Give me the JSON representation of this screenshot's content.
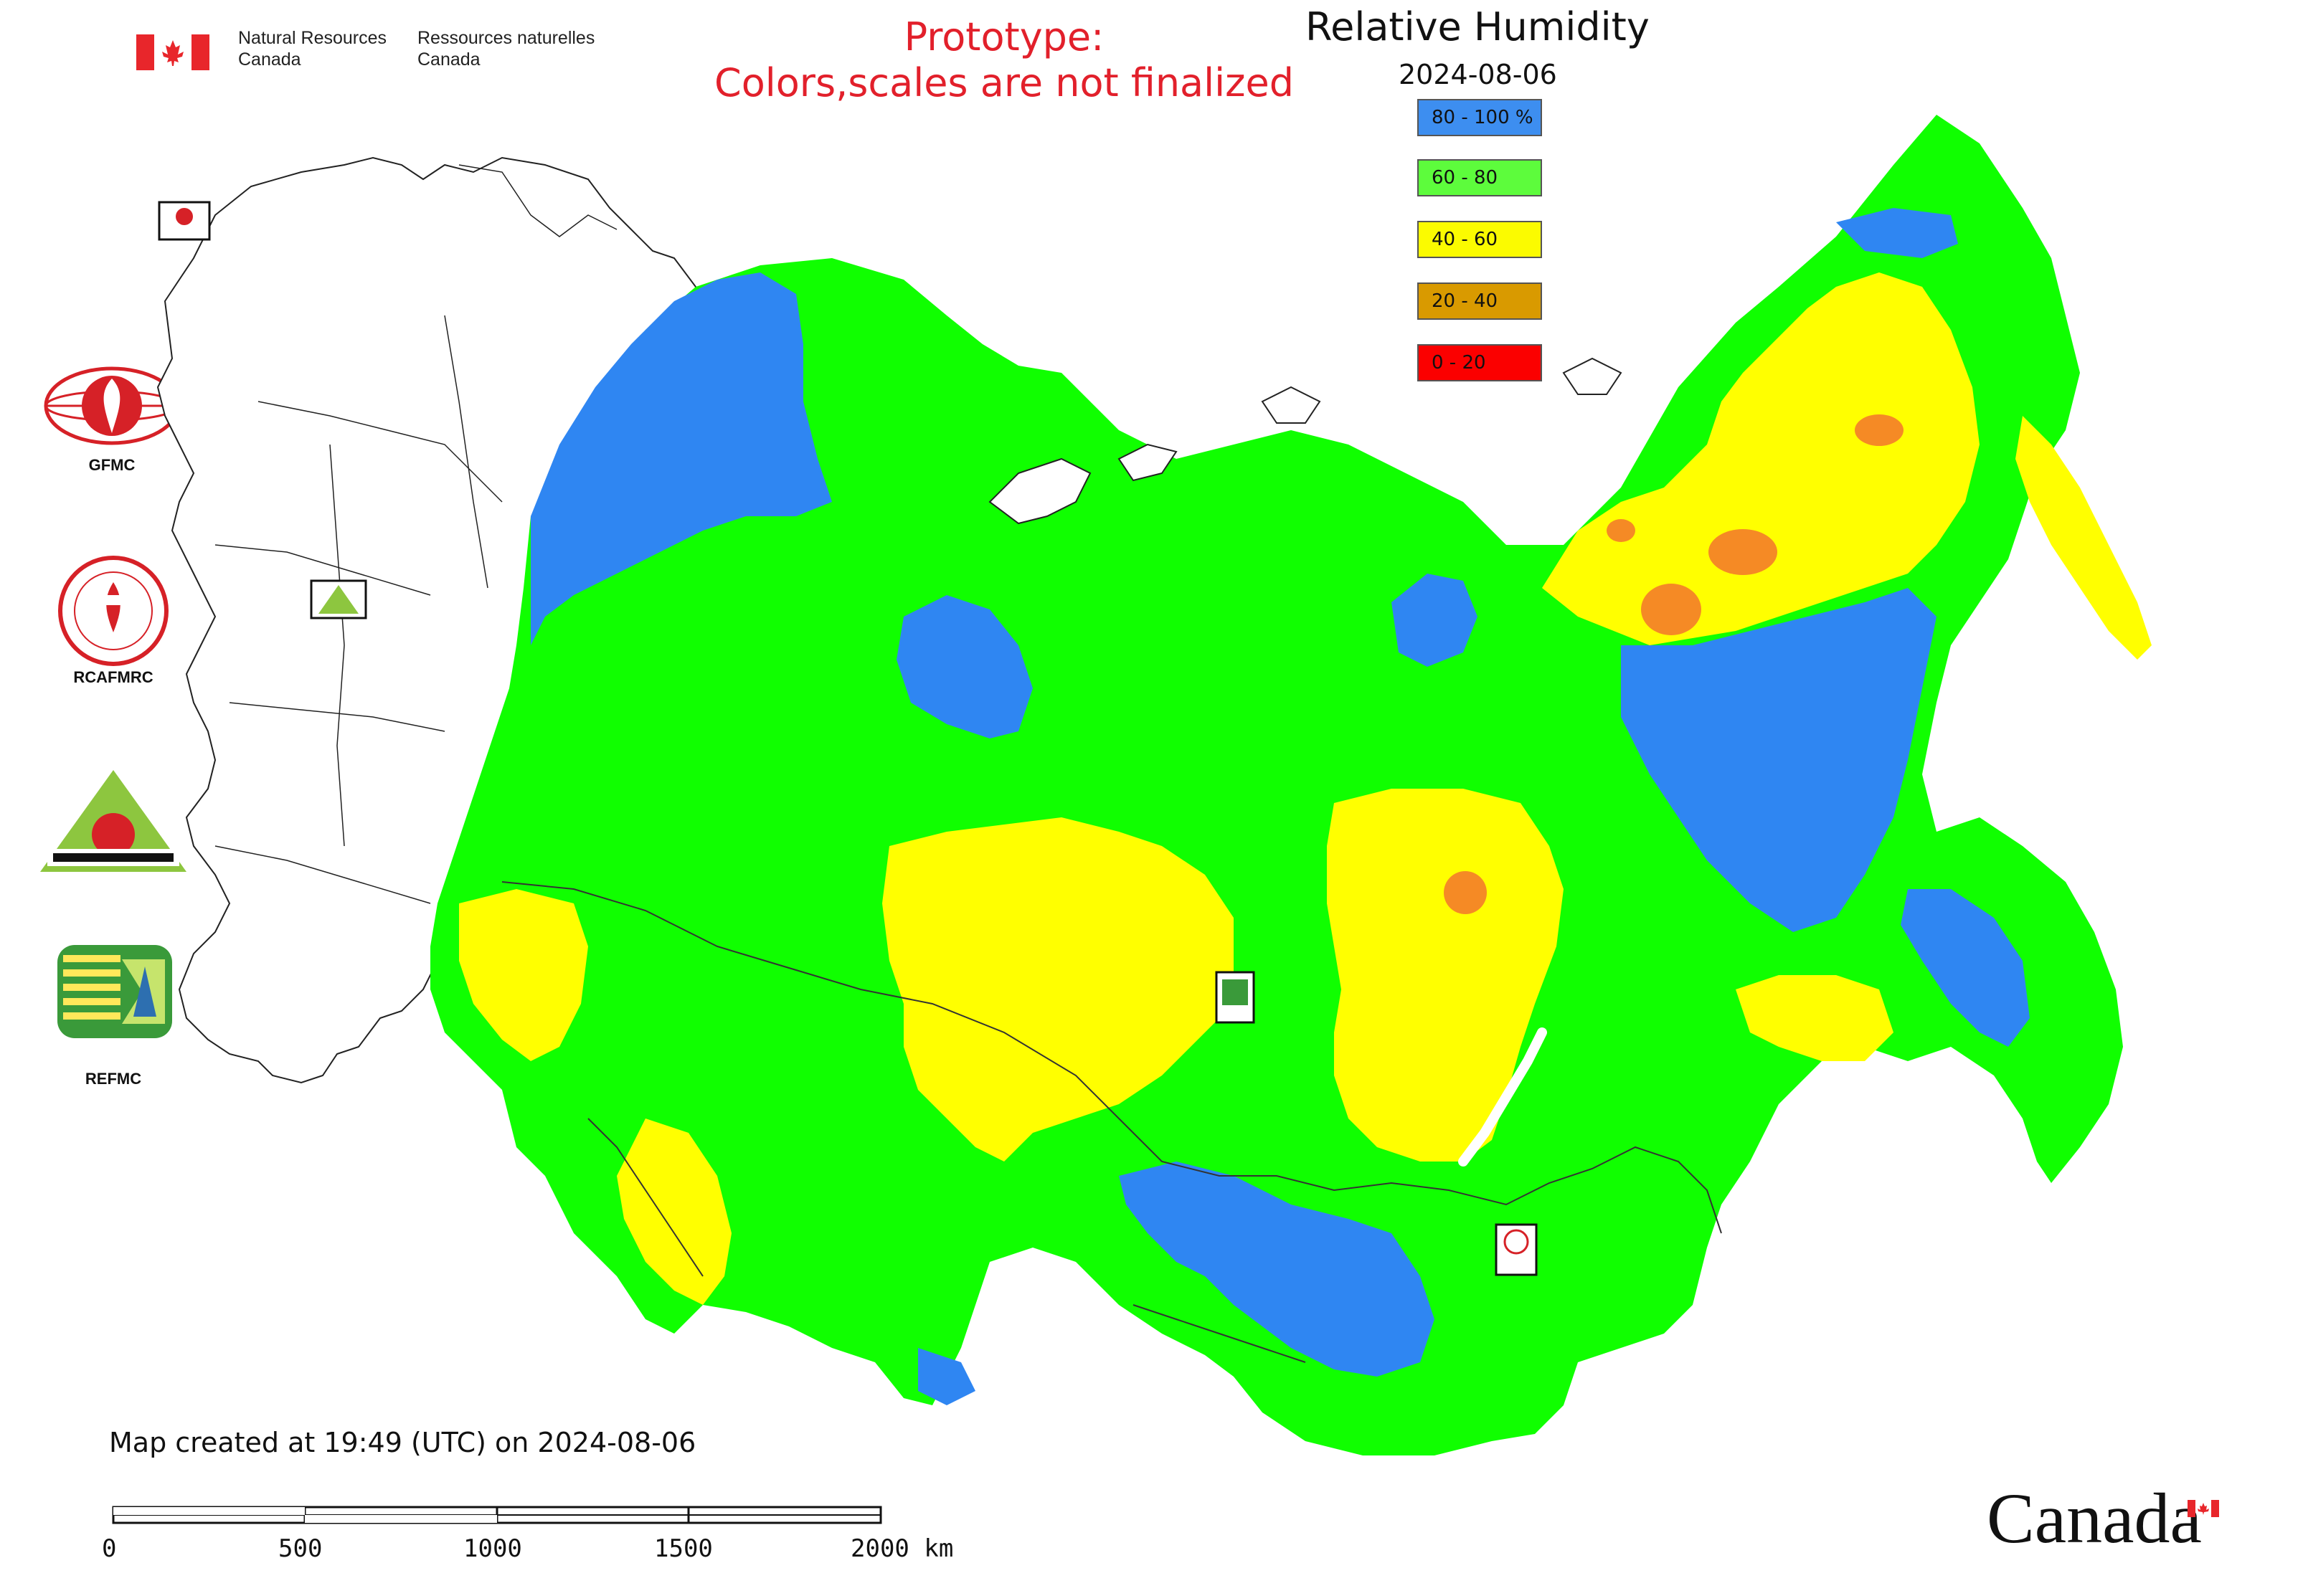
{
  "header": {
    "agency_en_line1": "Natural Resources",
    "agency_en_line2": "Canada",
    "agency_fr_line1": "Ressources naturelles",
    "agency_fr_line2": "Canada"
  },
  "warning": {
    "line1": "Prototype:",
    "line2": "Colors,scales are not finalized"
  },
  "map": {
    "title": "Relative Humidity",
    "date": "2024-08-06",
    "created_text": "Map created at 19:49 (UTC) on 2024-08-06"
  },
  "legend": [
    {
      "label": "80 - 100 %",
      "color": "#3d8ef0"
    },
    {
      "label": "60 - 80",
      "color": "#5dfc3c"
    },
    {
      "label": "40 - 60",
      "color": "#fbfb00"
    },
    {
      "label": "20 - 40",
      "color": "#d99a00"
    },
    {
      "label": "0 - 20",
      "color": "#fb0000"
    }
  ],
  "logos": [
    {
      "caption": "GFMC",
      "icon": "gfmc-logo"
    },
    {
      "caption": "RCAFMRC",
      "icon": "rcafmrc-logo"
    },
    {
      "caption": "",
      "icon": "reefmc-logo"
    },
    {
      "caption": "REFMC",
      "icon": "refmc-logo"
    }
  ],
  "scale_bar": {
    "ticks": [
      "0",
      "500",
      "1000",
      "1500",
      "2000 km"
    ]
  },
  "footer": {
    "wordmark": "Canada"
  },
  "colors": {
    "blue": "#2f86f2",
    "green": "#10ff00",
    "yellow": "#ffff00",
    "orange": "#f58a25",
    "red_text": "#e2202b",
    "canada_red": "#e8262b"
  }
}
